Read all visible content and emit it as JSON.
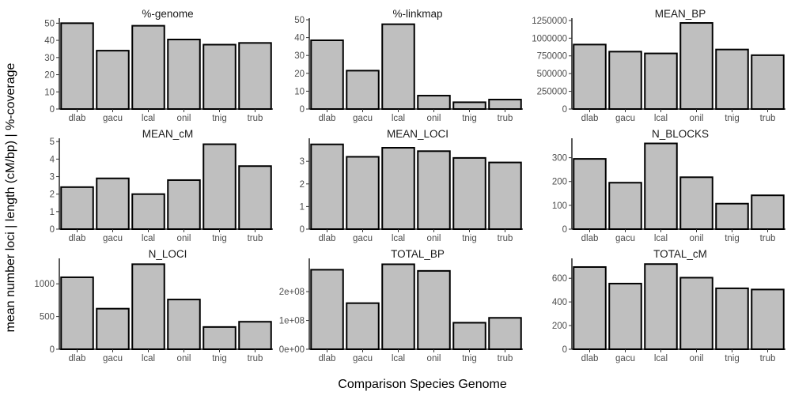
{
  "figure": {
    "ylabel": "mean number loci | length (cM/bp) | %-coverage",
    "xlabel": "Comparison Species Genome"
  },
  "chart_data": [
    {
      "type": "bar",
      "title": "%-genome",
      "categories": [
        "dlab",
        "gacu",
        "lcal",
        "onil",
        "tnig",
        "trub"
      ],
      "values": [
        50,
        34,
        48.5,
        40.5,
        37.5,
        38.5
      ],
      "ylim": [
        0,
        52
      ],
      "yticks": [
        0,
        10,
        20,
        30,
        40,
        50
      ],
      "ytick_labels": [
        "0",
        "10",
        "20",
        "30",
        "40",
        "50"
      ],
      "grid": false
    },
    {
      "type": "bar",
      "title": "%-linkmap",
      "categories": [
        "dlab",
        "gacu",
        "lcal",
        "onil",
        "tnig",
        "trub"
      ],
      "values": [
        38.5,
        21.5,
        47.5,
        7.5,
        3.8,
        5.3
      ],
      "ylim": [
        0,
        50
      ],
      "yticks": [
        0,
        10,
        20,
        30,
        40,
        50
      ],
      "ytick_labels": [
        "0",
        "10",
        "20",
        "30",
        "40",
        "50"
      ],
      "grid": false
    },
    {
      "type": "bar",
      "title": "MEAN_BP",
      "categories": [
        "dlab",
        "gacu",
        "lcal",
        "onil",
        "tnig",
        "trub"
      ],
      "values": [
        910000,
        810000,
        785000,
        1215000,
        840000,
        760000
      ],
      "ylim": [
        0,
        1260000
      ],
      "yticks": [
        0,
        250000,
        500000,
        750000,
        1000000,
        1250000
      ],
      "ytick_labels": [
        "0",
        "250000",
        "500000",
        "750000",
        "1000000",
        "1250000"
      ],
      "grid": false
    },
    {
      "type": "bar",
      "title": "MEAN_cM",
      "categories": [
        "dlab",
        "gacu",
        "lcal",
        "onil",
        "tnig",
        "trub"
      ],
      "values": [
        2.4,
        2.9,
        2.0,
        2.8,
        4.85,
        3.6
      ],
      "ylim": [
        0,
        5.1
      ],
      "yticks": [
        0,
        1,
        2,
        3,
        4,
        5
      ],
      "ytick_labels": [
        "0",
        "1",
        "2",
        "3",
        "4",
        "5"
      ],
      "grid": false
    },
    {
      "type": "bar",
      "title": "MEAN_LOCI",
      "categories": [
        "dlab",
        "gacu",
        "lcal",
        "onil",
        "tnig",
        "trub"
      ],
      "values": [
        3.75,
        3.2,
        3.6,
        3.45,
        3.15,
        2.95
      ],
      "ylim": [
        0,
        3.95
      ],
      "yticks": [
        0,
        1,
        2,
        3
      ],
      "ytick_labels": [
        "0",
        "1",
        "2",
        "3"
      ],
      "grid": false
    },
    {
      "type": "bar",
      "title": "N_BLOCKS",
      "categories": [
        "dlab",
        "gacu",
        "lcal",
        "onil",
        "tnig",
        "trub"
      ],
      "values": [
        295,
        195,
        360,
        218,
        107,
        142
      ],
      "ylim": [
        0,
        375
      ],
      "yticks": [
        0,
        100,
        200,
        300
      ],
      "ytick_labels": [
        "0",
        "100",
        "200",
        "300"
      ],
      "grid": false
    },
    {
      "type": "bar",
      "title": "N_LOCI",
      "categories": [
        "dlab",
        "gacu",
        "lcal",
        "onil",
        "tnig",
        "trub"
      ],
      "values": [
        1100,
        620,
        1300,
        760,
        340,
        420
      ],
      "ylim": [
        0,
        1365
      ],
      "yticks": [
        0,
        500,
        1000
      ],
      "ytick_labels": [
        "0",
        "500",
        "1000"
      ],
      "grid": false
    },
    {
      "type": "bar",
      "title": "TOTAL_BP",
      "categories": [
        "dlab",
        "gacu",
        "lcal",
        "onil",
        "tnig",
        "trub"
      ],
      "values": [
        276000000,
        160000000,
        295000000,
        272000000,
        92000000,
        109000000
      ],
      "ylim": [
        0,
        310000000
      ],
      "yticks": [
        0,
        100000000,
        200000000
      ],
      "ytick_labels": [
        "0e+00",
        "1e+08",
        "2e+08"
      ],
      "grid": false
    },
    {
      "type": "bar",
      "title": "TOTAL_cM",
      "categories": [
        "dlab",
        "gacu",
        "lcal",
        "onil",
        "tnig",
        "trub"
      ],
      "values": [
        695,
        555,
        720,
        605,
        515,
        505
      ],
      "ylim": [
        0,
        755
      ],
      "yticks": [
        0,
        200,
        400,
        600
      ],
      "ytick_labels": [
        "0",
        "200",
        "400",
        "600"
      ],
      "grid": false
    }
  ]
}
